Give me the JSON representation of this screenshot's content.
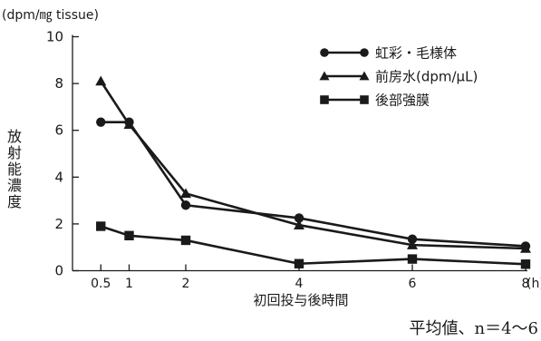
{
  "chart_data": {
    "type": "line",
    "unit_label": "(dpm/㎎ tissue)",
    "ylabel": "放射能濃度",
    "xlabel": "初回投与後時間",
    "x_unit": "(h)",
    "x": [
      0.5,
      1,
      2,
      4,
      6,
      8
    ],
    "x_tick_labels": [
      "0.5",
      "1",
      "2",
      "4",
      "6",
      "8"
    ],
    "xlim": [
      0,
      8
    ],
    "ylim": [
      0,
      10
    ],
    "y_ticks": [
      0,
      2,
      4,
      6,
      8,
      10
    ],
    "y_tick_labels": [
      "0",
      "2",
      "4",
      "6",
      "8",
      "10"
    ],
    "grid": false,
    "legend_position": "top-right",
    "series": [
      {
        "name": "虹彩・毛様体",
        "marker": "circle",
        "values": [
          6.35,
          6.35,
          2.8,
          2.25,
          1.35,
          1.05
        ]
      },
      {
        "name": "前房水(dpm/μL)",
        "marker": "triangle",
        "values": [
          8.1,
          6.25,
          3.3,
          1.95,
          1.1,
          0.95
        ]
      },
      {
        "name": "後部強膜",
        "marker": "square",
        "values": [
          1.9,
          1.5,
          1.3,
          0.3,
          0.5,
          0.28
        ]
      }
    ],
    "footnote": "平均値、n＝4〜6"
  }
}
